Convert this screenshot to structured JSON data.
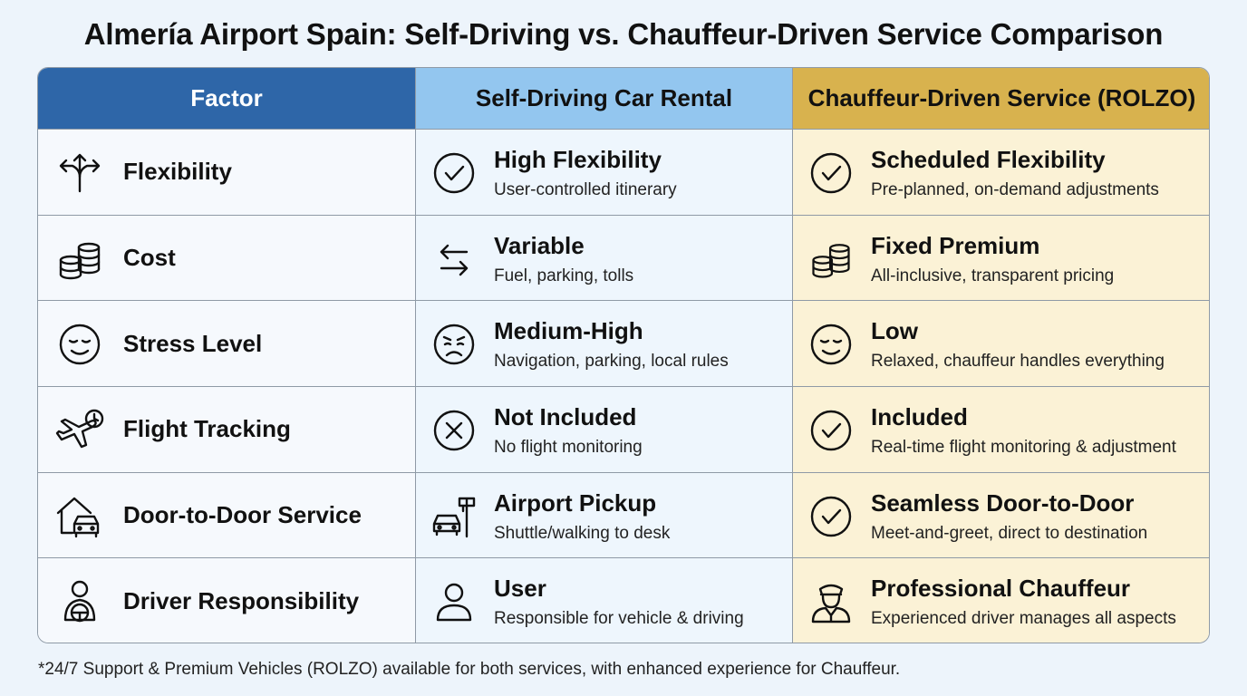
{
  "title": "Almería Airport Spain: Self-Driving vs. Chauffeur-Driven Service Comparison",
  "headers": {
    "factor": "Factor",
    "self": "Self-Driving Car Rental",
    "chauffeur": "Chauffeur-Driven Service (ROLZO)"
  },
  "colors": {
    "factor_header": "#2e66a8",
    "self_header": "#93c6ef",
    "chauffeur_header": "#d8b24e",
    "chauffeur_cell": "#fbf2d6"
  },
  "rows": [
    {
      "factor": "Flexibility",
      "factor_icon": "diverging-arrows-icon",
      "self": {
        "title": "High Flexibility",
        "sub": "User-controlled itinerary",
        "icon": "check-circle-icon"
      },
      "chauffeur": {
        "title": "Scheduled Flexibility",
        "sub": "Pre-planned, on-demand adjustments",
        "icon": "check-circle-icon"
      }
    },
    {
      "factor": "Cost",
      "factor_icon": "coin-stack-icon",
      "self": {
        "title": "Variable",
        "sub": "Fuel, parking, tolls",
        "icon": "swap-arrows-icon"
      },
      "chauffeur": {
        "title": "Fixed Premium",
        "sub": "All-inclusive, transparent pricing",
        "icon": "coin-stack-icon"
      }
    },
    {
      "factor": "Stress Level",
      "factor_icon": "relaxed-face-icon",
      "self": {
        "title": "Medium-High",
        "sub": "Navigation, parking, local rules",
        "icon": "worried-face-icon"
      },
      "chauffeur": {
        "title": "Low",
        "sub": "Relaxed, chauffeur handles everything",
        "icon": "relaxed-face-icon"
      }
    },
    {
      "factor": "Flight Tracking",
      "factor_icon": "plane-clock-icon",
      "self": {
        "title": "Not Included",
        "sub": "No flight monitoring",
        "icon": "x-circle-icon"
      },
      "chauffeur": {
        "title": "Included",
        "sub": "Real-time flight monitoring & adjustment",
        "icon": "check-circle-icon"
      }
    },
    {
      "factor": "Door-to-Door Service",
      "factor_icon": "house-car-icon",
      "self": {
        "title": "Airport Pickup",
        "sub": "Shuttle/walking to desk",
        "icon": "car-sign-icon"
      },
      "chauffeur": {
        "title": "Seamless Door-to-Door",
        "sub": "Meet-and-greet, direct to destination",
        "icon": "check-circle-icon"
      }
    },
    {
      "factor": "Driver Responsibility",
      "factor_icon": "driver-wheel-icon",
      "self": {
        "title": "User",
        "sub": "Responsible for vehicle & driving",
        "icon": "user-icon"
      },
      "chauffeur": {
        "title": "Professional Chauffeur",
        "sub": "Experienced driver manages all aspects",
        "icon": "chauffeur-icon"
      }
    }
  ],
  "footnote": "*24/7 Support & Premium Vehicles (ROLZO) available for both services, with enhanced experience for Chauffeur."
}
